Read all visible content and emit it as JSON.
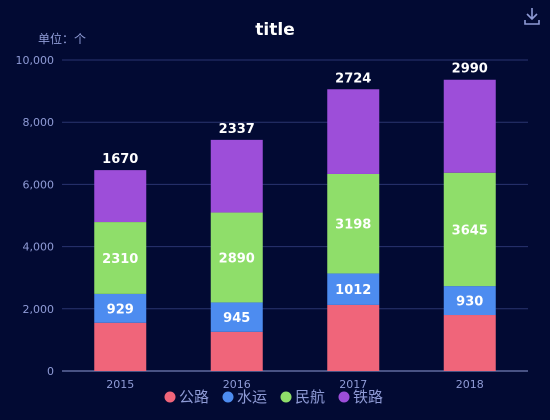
{
  "toolbar": {
    "download_icon": "download-icon"
  },
  "chart_data": {
    "type": "bar",
    "stacked": true,
    "title": "title",
    "unit_label": "单位：个",
    "categories": [
      "2015",
      "2016",
      "2017",
      "2018"
    ],
    "ylim": [
      0,
      10000
    ],
    "yticks": [
      "0",
      "2,000",
      "4,000",
      "6,000",
      "8,000",
      "10,000"
    ],
    "series": [
      {
        "name": "公路",
        "color": "#f0657a",
        "values": [
          1550,
          1260,
          2125,
          1800
        ],
        "labels_shown": false
      },
      {
        "name": "水运",
        "color": "#4d8cf0",
        "values": [
          929,
          945,
          1012,
          930
        ],
        "labels_shown": true
      },
      {
        "name": "民航",
        "color": "#8fde6a",
        "values": [
          2310,
          2890,
          3198,
          3645
        ],
        "labels_shown": true
      },
      {
        "name": "铁路",
        "color": "#9d4ed9",
        "values": [
          1670,
          2337,
          2724,
          2990
        ],
        "labels_shown": true
      }
    ],
    "legend_position": "bottom",
    "grid": true
  }
}
